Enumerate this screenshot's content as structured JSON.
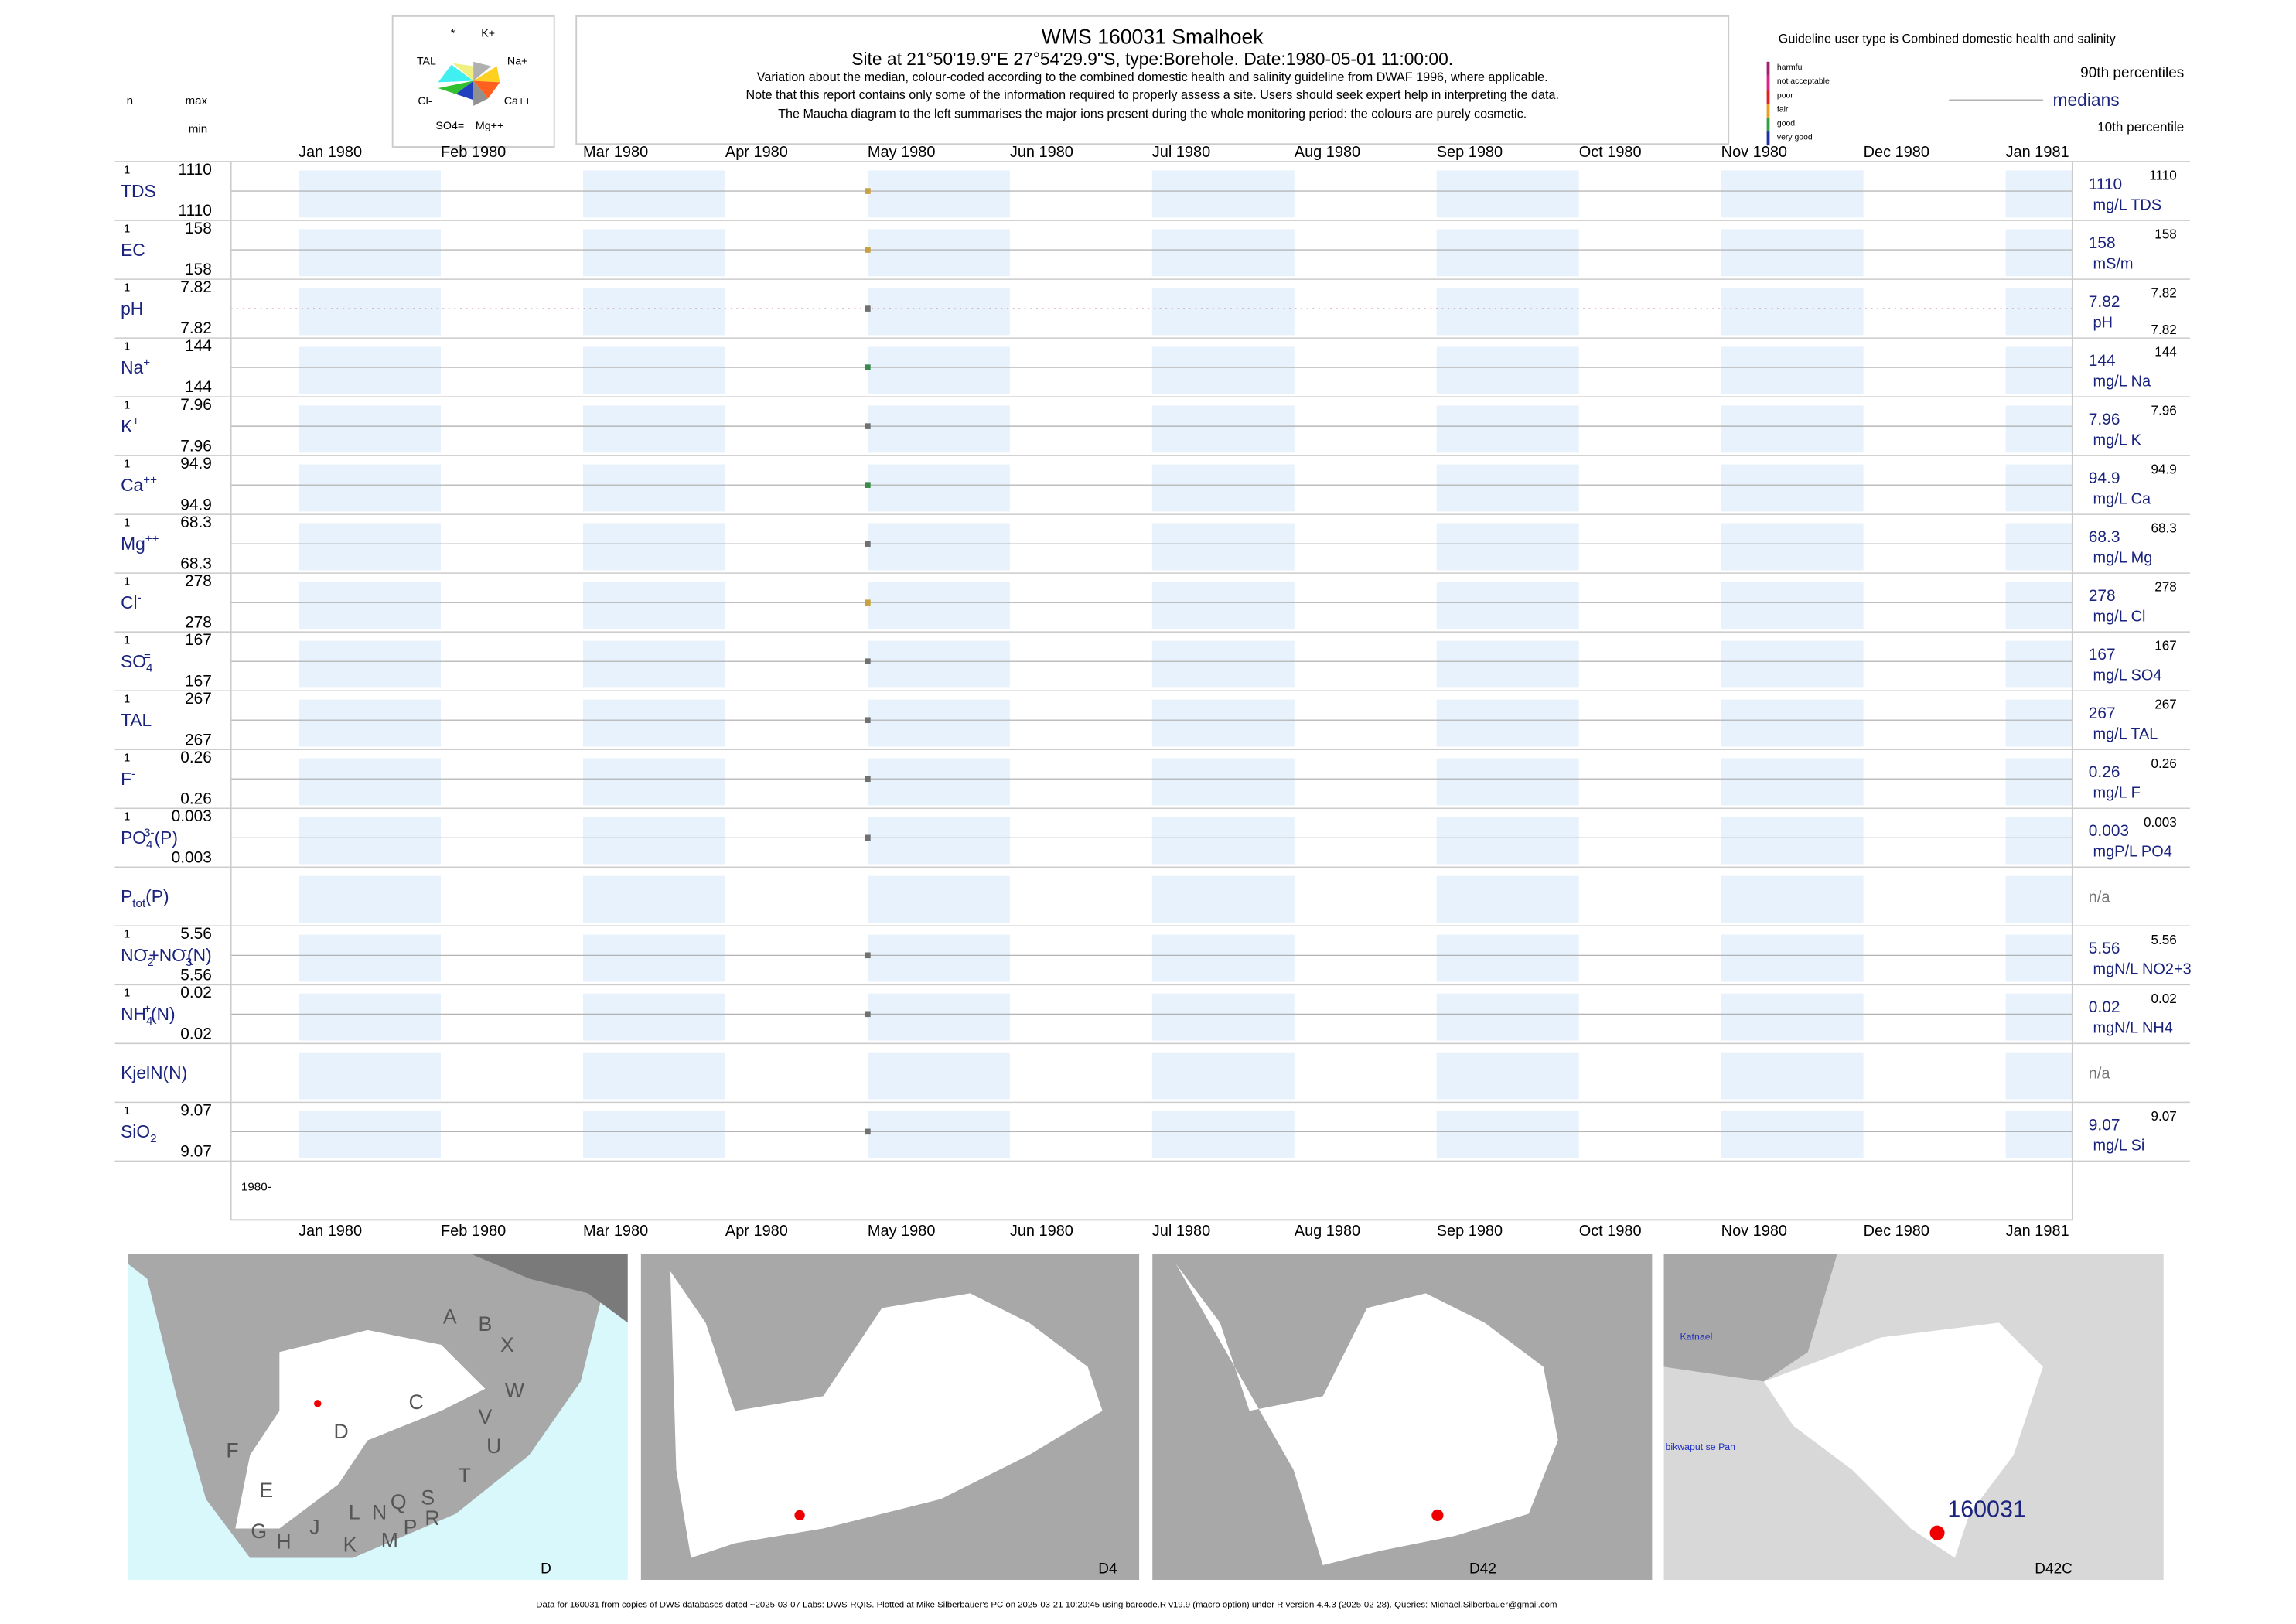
{
  "header": {
    "title": "WMS 160031  Smalhoek",
    "subtitle": "Site at 21°50'19.9\"E 27°54'29.9\"S, type:Borehole. Date:1980-05-01 11:00:00.",
    "notes": [
      "Variation about the median,  colour-coded according to the combined domestic health and salinity guideline from DWAF 1996, where applicable.",
      "Note that this report contains only some of the information required to properly assess a site. Users should seek expert help in interpreting the data.",
      "The Maucha diagram to the left summarises the major ions present during the whole monitoring period: the colours are purely cosmetic."
    ]
  },
  "column_heads": {
    "n": "n",
    "max": "max",
    "min": "min"
  },
  "maucha": {
    "labels": [
      "*",
      "K+",
      "Na+",
      "Ca++",
      "Mg++",
      "SO4=",
      "Cl-",
      "TAL"
    ]
  },
  "legend": {
    "guideline": "Guideline user type is Combined domestic health and salinity",
    "classes": [
      {
        "name": "harmful",
        "color": "#a0206a"
      },
      {
        "name": "not acceptable",
        "color": "#e0208a"
      },
      {
        "name": "poor",
        "color": "#e02020"
      },
      {
        "name": "fair",
        "color": "#e8a020"
      },
      {
        "name": "good",
        "color": "#30a040"
      },
      {
        "name": "very good",
        "color": "#2030a0"
      }
    ],
    "p90": "90th percentiles",
    "median": "medians",
    "p10": "10th percentile"
  },
  "months": [
    "Jan 1980",
    "Feb 1980",
    "Mar 1980",
    "Apr 1980",
    "May 1980",
    "Jun 1980",
    "Jul 1980",
    "Aug 1980",
    "Sep 1980",
    "Oct 1980",
    "Nov 1980",
    "Dec 1980",
    "Jan 1981"
  ],
  "year_label": "1980-",
  "rows": [
    {
      "parts": [
        {
          "text": "TDS"
        }
      ],
      "n": 1,
      "max": 1110,
      "min": 1110,
      "median": 1110,
      "p90": 1110,
      "unit": "mg/L TDS",
      "color": "#c8a040"
    },
    {
      "parts": [
        {
          "text": "EC"
        }
      ],
      "n": 1,
      "max": 158,
      "min": 158,
      "median": 158,
      "p90": 158,
      "unit": "mS/m",
      "color": "#c8a040"
    },
    {
      "parts": [
        {
          "text": "pH"
        }
      ],
      "n": 1,
      "max": 7.82,
      "min": 7.82,
      "median": 7.82,
      "p90": 7.82,
      "p10": 7.82,
      "unit": "pH",
      "color": "#707070"
    },
    {
      "parts": [
        {
          "text": "Na"
        },
        {
          "text": "+",
          "pos": "sup"
        }
      ],
      "n": 1,
      "max": 144,
      "min": 144,
      "median": 144,
      "p90": 144,
      "unit": "mg/L Na",
      "color": "#3a8a4a"
    },
    {
      "parts": [
        {
          "text": "K"
        },
        {
          "text": "+",
          "pos": "sup"
        }
      ],
      "n": 1,
      "max": 7.96,
      "min": 7.96,
      "median": 7.96,
      "p90": 7.96,
      "unit": "mg/L K",
      "color": "#707070"
    },
    {
      "parts": [
        {
          "text": "Ca"
        },
        {
          "text": "++",
          "pos": "sup"
        }
      ],
      "n": 1,
      "max": 94.9,
      "min": 94.9,
      "median": 94.9,
      "p90": 94.9,
      "unit": "mg/L Ca",
      "color": "#3a8a4a"
    },
    {
      "parts": [
        {
          "text": "Mg"
        },
        {
          "text": "++",
          "pos": "sup"
        }
      ],
      "n": 1,
      "max": 68.3,
      "min": 68.3,
      "median": 68.3,
      "p90": 68.3,
      "unit": "mg/L Mg",
      "color": "#707070"
    },
    {
      "parts": [
        {
          "text": "Cl"
        },
        {
          "text": "-",
          "pos": "sup"
        }
      ],
      "n": 1,
      "max": 278,
      "min": 278,
      "median": 278,
      "p90": 278,
      "unit": "mg/L Cl",
      "color": "#c8a040"
    },
    {
      "parts": [
        {
          "text": "SO"
        },
        {
          "text": "4",
          "pos": "sub"
        },
        {
          "text": "=",
          "pos": "sup"
        }
      ],
      "n": 1,
      "max": 167,
      "min": 167,
      "median": 167,
      "p90": 167,
      "unit": "mg/L SO4",
      "color": "#707070"
    },
    {
      "parts": [
        {
          "text": "TAL"
        }
      ],
      "n": 1,
      "max": 267,
      "min": 267,
      "median": 267,
      "p90": 267,
      "unit": "mg/L TAL",
      "color": "#707070"
    },
    {
      "parts": [
        {
          "text": "F"
        },
        {
          "text": "-",
          "pos": "sup"
        }
      ],
      "n": 1,
      "max": 0.26,
      "min": 0.26,
      "median": 0.26,
      "p90": 0.26,
      "unit": "mg/L F",
      "color": "#707070"
    },
    {
      "parts": [
        {
          "text": "PO"
        },
        {
          "text": "4",
          "pos": "sub"
        },
        {
          "text": "3-",
          "pos": "sup"
        },
        {
          "text": "(P)"
        }
      ],
      "n": 1,
      "max": 0.003,
      "min": 0.003,
      "median": 0.003,
      "p90": 0.003,
      "unit": "mgP/L PO4",
      "color": "#707070"
    },
    {
      "parts": [
        {
          "text": "P"
        },
        {
          "text": "tot",
          "pos": "sub"
        },
        {
          "text": "(P)"
        }
      ],
      "na": "n/a"
    },
    {
      "parts": [
        {
          "text": "NO"
        },
        {
          "text": "2",
          "pos": "sub"
        },
        {
          "text": "-",
          "pos": "sup"
        },
        {
          "text": "+NO"
        },
        {
          "text": "3",
          "pos": "sub"
        },
        {
          "text": "-",
          "pos": "sup"
        },
        {
          "text": "(N)"
        }
      ],
      "n": 1,
      "max": 5.56,
      "min": 5.56,
      "median": 5.56,
      "p90": 5.56,
      "unit": "mgN/L NO2+3",
      "color": "#707070"
    },
    {
      "parts": [
        {
          "text": "NH"
        },
        {
          "text": "4",
          "pos": "sub"
        },
        {
          "text": "+",
          "pos": "sup"
        },
        {
          "text": "(N)"
        }
      ],
      "n": 1,
      "max": 0.02,
      "min": 0.02,
      "median": 0.02,
      "p90": 0.02,
      "unit": "mgN/L NH4",
      "color": "#707070"
    },
    {
      "parts": [
        {
          "text": "KjelN(N)"
        }
      ],
      "na": "n/a"
    },
    {
      "parts": [
        {
          "text": "SiO"
        },
        {
          "text": "2",
          "pos": "sub"
        }
      ],
      "n": 1,
      "max": 9.07,
      "min": 9.07,
      "median": 9.07,
      "p90": 9.07,
      "unit": "mg/L Si",
      "color": "#707070"
    }
  ],
  "maps": {
    "regions": [
      "A",
      "B",
      "X",
      "C",
      "W",
      "D",
      "V",
      "U",
      "F",
      "T",
      "E",
      "S",
      "R",
      "Q",
      "N",
      "L",
      "P",
      "M",
      "J",
      "K",
      "G",
      "H"
    ],
    "panel_labels": [
      "D",
      "D4",
      "D42",
      "D42C"
    ],
    "site": "160031",
    "places": [
      "Katnael",
      "bikwaput se Pan"
    ]
  },
  "footer": "Data for 160031 from copies of DWS databases dated ~2025-03-07 Labs: DWS-RQIS. Plotted at Mike Silberbauer's PC on 2025-03-21 10:20:45 using barcode.R v19.9 (macro option) under R version 4.4.3 (2025-02-28). Queries: Michael.Silberbauer@gmail.com"
}
